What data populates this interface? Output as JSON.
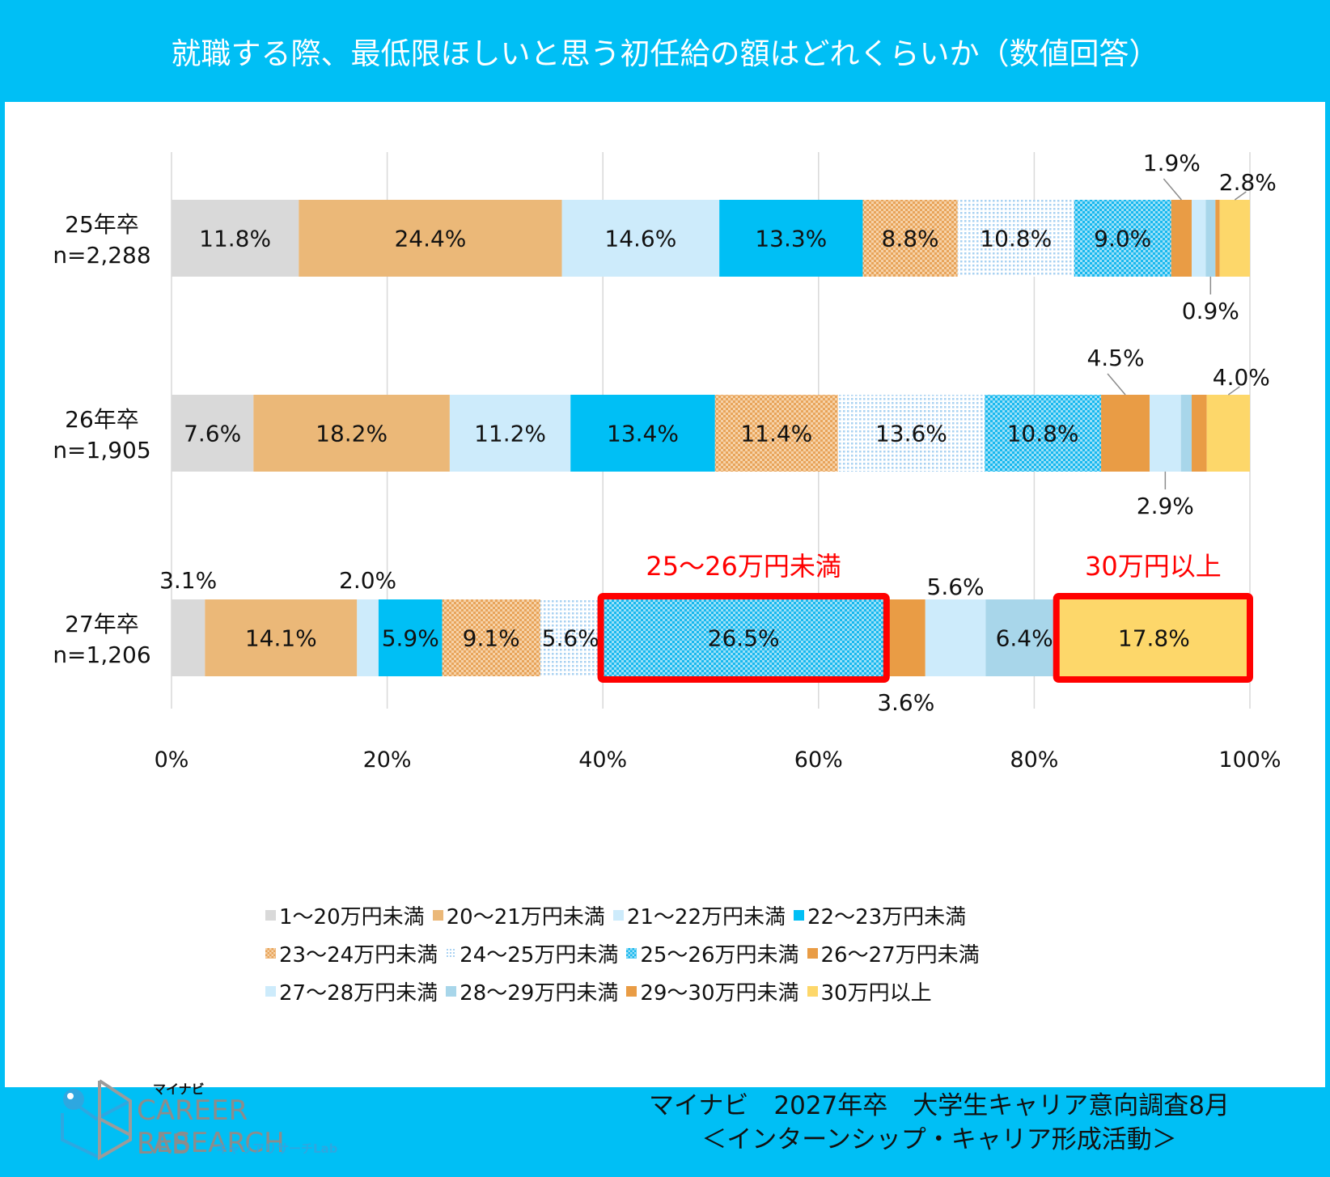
{
  "header": {
    "title": "就職する際、最低限ほしいと思う初任給の額はどれくらいか（数値回答）"
  },
  "colors": {
    "frame": "#00BFF5",
    "highlight": "#FF0000"
  },
  "chart_data": {
    "type": "bar",
    "orientation": "horizontal-stacked-100",
    "title": "就職する際、最低限ほしいと思う初任給の額はどれくらいか（数値回答）",
    "xlabel": "",
    "ylabel": "",
    "xlim": [
      0,
      100
    ],
    "x_ticks": [
      "0%",
      "20%",
      "40%",
      "60%",
      "80%",
      "100%"
    ],
    "grid": true,
    "legend_position": "bottom",
    "categories": [
      {
        "label": "25年卒",
        "n": "n=2,288"
      },
      {
        "label": "26年卒",
        "n": "n=1,905"
      },
      {
        "label": "27年卒",
        "n": "n=1,206"
      }
    ],
    "series": [
      {
        "name": "1～20万円未満",
        "color": "#D9D9D9",
        "pattern": "solid",
        "values": [
          11.8,
          7.6,
          3.1
        ]
      },
      {
        "name": "20～21万円未満",
        "color": "#EBB878",
        "pattern": "solid",
        "values": [
          24.4,
          18.2,
          14.1
        ]
      },
      {
        "name": "21～22万円未満",
        "color": "#CDEBFB",
        "pattern": "solid",
        "values": [
          14.6,
          11.2,
          2.0
        ]
      },
      {
        "name": "22～23万円未満",
        "color": "#00BFF5",
        "pattern": "solid",
        "values": [
          13.3,
          13.4,
          5.9
        ]
      },
      {
        "name": "23～24万円未満",
        "color": "#E8A45A",
        "pattern": "dots-orange",
        "values": [
          8.8,
          11.4,
          9.1
        ]
      },
      {
        "name": "24～25万円未満",
        "color": "#A9D2F2",
        "pattern": "dots-light",
        "values": [
          10.8,
          13.6,
          5.6
        ]
      },
      {
        "name": "25～26万円未満",
        "color": "#18B8EE",
        "pattern": "checker-blue",
        "values": [
          9.0,
          10.8,
          26.5
        ]
      },
      {
        "name": "26～27万円未満",
        "color": "#E99C45",
        "pattern": "solid",
        "values": [
          1.9,
          4.5,
          3.6
        ]
      },
      {
        "name": "27～28万円未満",
        "color": "#CDEBFB",
        "pattern": "solid",
        "values": [
          1.3,
          2.9,
          5.6
        ]
      },
      {
        "name": "28～29万円未満",
        "color": "#A8D6EA",
        "pattern": "solid",
        "values": [
          0.9,
          1.0,
          6.4
        ]
      },
      {
        "name": "29～30万円未満",
        "color": "#E99C45",
        "pattern": "solid",
        "values": [
          0.4,
          1.4,
          0.3
        ]
      },
      {
        "name": "30万円以上",
        "color": "#FDD76A",
        "pattern": "solid",
        "values": [
          2.8,
          4.0,
          17.8
        ]
      }
    ],
    "data_labels": [
      [
        {
          "series": 0,
          "text": "11.8%",
          "pos": "inside"
        },
        {
          "series": 1,
          "text": "24.4%",
          "pos": "inside"
        },
        {
          "series": 2,
          "text": "14.6%",
          "pos": "inside"
        },
        {
          "series": 3,
          "text": "13.3%",
          "pos": "inside"
        },
        {
          "series": 4,
          "text": "8.8%",
          "pos": "inside"
        },
        {
          "series": 5,
          "text": "10.8%",
          "pos": "inside"
        },
        {
          "series": 6,
          "text": "9.0%",
          "pos": "inside"
        },
        {
          "series": 7,
          "text": "1.9%",
          "pos": "callout-above"
        },
        {
          "series": 9,
          "text": "0.9%",
          "pos": "callout-below"
        },
        {
          "series": 11,
          "text": "2.8%",
          "pos": "callout-above"
        }
      ],
      [
        {
          "series": 0,
          "text": "7.6%",
          "pos": "inside"
        },
        {
          "series": 1,
          "text": "18.2%",
          "pos": "inside"
        },
        {
          "series": 2,
          "text": "11.2%",
          "pos": "inside"
        },
        {
          "series": 3,
          "text": "13.4%",
          "pos": "inside"
        },
        {
          "series": 4,
          "text": "11.4%",
          "pos": "inside"
        },
        {
          "series": 5,
          "text": "13.6%",
          "pos": "inside"
        },
        {
          "series": 6,
          "text": "10.8%",
          "pos": "inside"
        },
        {
          "series": 7,
          "text": "4.5%",
          "pos": "callout-above"
        },
        {
          "series": 8,
          "text": "2.9%",
          "pos": "callout-below"
        },
        {
          "series": 11,
          "text": "4.0%",
          "pos": "callout-above"
        }
      ],
      [
        {
          "series": 0,
          "text": "3.1%",
          "pos": "above"
        },
        {
          "series": 1,
          "text": "14.1%",
          "pos": "inside"
        },
        {
          "series": 2,
          "text": "2.0%",
          "pos": "above"
        },
        {
          "series": 3,
          "text": "5.9%",
          "pos": "inside"
        },
        {
          "series": 4,
          "text": "9.1%",
          "pos": "inside"
        },
        {
          "series": 5,
          "text": "5.6%",
          "pos": "inside"
        },
        {
          "series": 6,
          "text": "26.5%",
          "pos": "inside"
        },
        {
          "series": 7,
          "text": "3.6%",
          "pos": "below"
        },
        {
          "series": 8,
          "text": "5.6%",
          "pos": "above"
        },
        {
          "series": 9,
          "text": "6.4%",
          "pos": "inside-right"
        },
        {
          "series": 11,
          "text": "17.8%",
          "pos": "inside"
        }
      ]
    ],
    "annotations": [
      {
        "text": "25～26万円未満",
        "category": 2,
        "series": 6,
        "style": "red-box"
      },
      {
        "text": "30万円以上",
        "category": 2,
        "series": 11,
        "style": "red-box"
      }
    ]
  },
  "footer": {
    "logo": {
      "brand_small": "マイナビ",
      "line1": "CAREER RESEARCH",
      "line2": "LAB",
      "sub": "キャリアリサーチLab"
    },
    "source_line1": "マイナビ　2027年卒　大学生キャリア意向調査8月",
    "source_line2": "＜インターンシップ・キャリア形成活動＞"
  }
}
